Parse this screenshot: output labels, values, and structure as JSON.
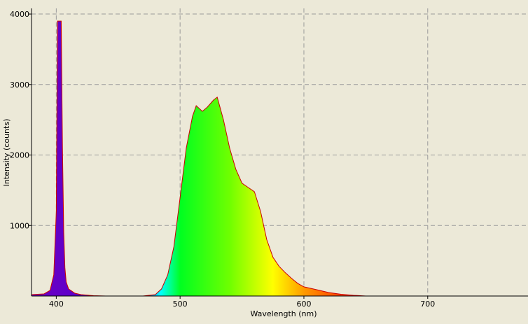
{
  "chart_data": {
    "type": "area",
    "x_label": "Wavelength (nm)",
    "y_label": "Intensity (counts)",
    "x": [
      380,
      390,
      395,
      398,
      400,
      401,
      402,
      403,
      404,
      405,
      406,
      407,
      408,
      410,
      415,
      420,
      430,
      440,
      470,
      480,
      485,
      490,
      495,
      500,
      505,
      510,
      513,
      518,
      522,
      527,
      530,
      535,
      540,
      545,
      550,
      555,
      560,
      565,
      570,
      575,
      580,
      585,
      590,
      595,
      600,
      605,
      610,
      620,
      630,
      640,
      650,
      781
    ],
    "series": [
      {
        "color": "#cc0000",
        "values": [
          20,
          30,
          80,
          300,
          1200,
          3900,
          3900,
          3900,
          3900,
          2100,
          900,
          400,
          200,
          100,
          40,
          20,
          5,
          0,
          0,
          20,
          100,
          300,
          700,
          1400,
          2100,
          2550,
          2700,
          2620,
          2680,
          2780,
          2820,
          2500,
          2100,
          1800,
          1600,
          1540,
          1480,
          1200,
          800,
          550,
          420,
          330,
          250,
          180,
          130,
          110,
          90,
          50,
          25,
          10,
          0,
          0
        ]
      }
    ],
    "xlim": [
      380,
      781
    ],
    "ylim": [
      0,
      4080
    ],
    "xticks": [
      400,
      500,
      600,
      700
    ],
    "yticks": [
      1000,
      2000,
      3000,
      4000
    ],
    "grid": true
  }
}
